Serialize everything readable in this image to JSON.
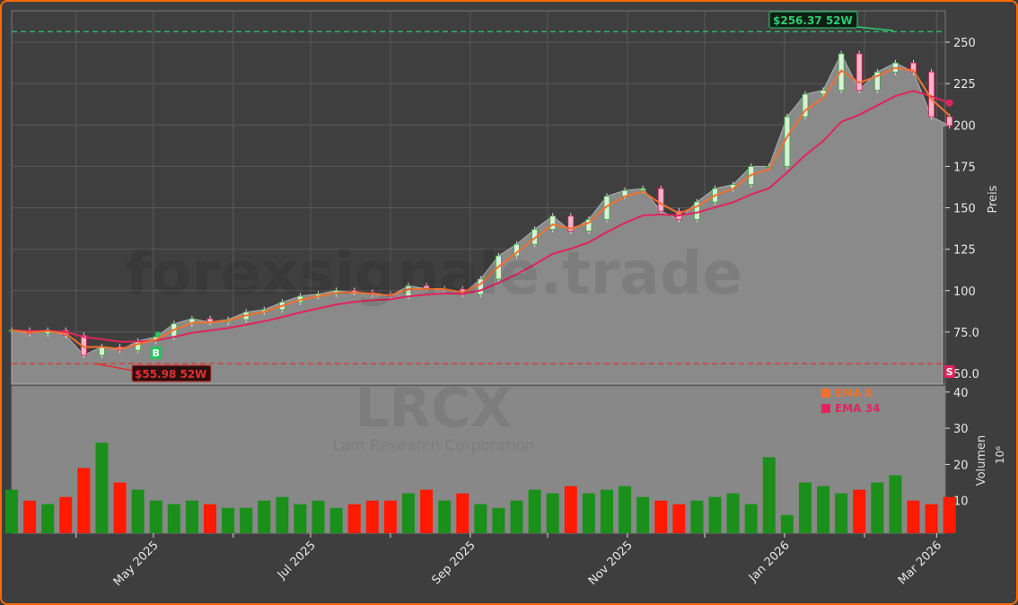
{
  "watermark": {
    "site": "forexsignale.trade",
    "ticker": "LRCX",
    "company": "Lam Research Corporation"
  },
  "colors": {
    "up": "#1a8f1a",
    "down": "#ff1a00",
    "ema_fast": "#f07030",
    "ema_slow": "#e0245e",
    "high_line": "#2ecc71",
    "low_line": "#e03030",
    "frame": "#ff6a00"
  },
  "chart_data": [
    {
      "type": "candlestick",
      "title": "",
      "ylabel": "Preis",
      "ylim": [
        45,
        268
      ],
      "yticks": [
        "50.0",
        "75.0",
        "100",
        "125",
        "150",
        "175",
        "200",
        "225",
        "250"
      ],
      "ytick_values": [
        50,
        75,
        100,
        125,
        150,
        175,
        200,
        225,
        250
      ],
      "grid": true,
      "dates": [
        "2025-03-07",
        "2025-03-14",
        "2025-03-21",
        "2025-03-28",
        "2025-04-04",
        "2025-04-11",
        "2025-04-18",
        "2025-04-25",
        "2025-05-02",
        "2025-05-09",
        "2025-05-16",
        "2025-05-23",
        "2025-05-30",
        "2025-06-06",
        "2025-06-13",
        "2025-06-20",
        "2025-06-27",
        "2025-07-04",
        "2025-07-11",
        "2025-07-18",
        "2025-07-25",
        "2025-08-01",
        "2025-08-08",
        "2025-08-15",
        "2025-08-22",
        "2025-08-29",
        "2025-09-05",
        "2025-09-12",
        "2025-09-19",
        "2025-09-26",
        "2025-10-03",
        "2025-10-10",
        "2025-10-17",
        "2025-10-24",
        "2025-10-31",
        "2025-11-07",
        "2025-11-14",
        "2025-11-21",
        "2025-11-28",
        "2025-12-05",
        "2025-12-12",
        "2025-12-19",
        "2025-12-26",
        "2026-01-02",
        "2026-01-09",
        "2026-01-16",
        "2026-01-23",
        "2026-01-30",
        "2026-02-06",
        "2026-02-13",
        "2026-02-20",
        "2026-02-27",
        "2026-03-06"
      ],
      "close": [
        76,
        74,
        76,
        73,
        61,
        66,
        64,
        69.5,
        72,
        80,
        83,
        81,
        82.5,
        87,
        88.5,
        93,
        96.6,
        98,
        100,
        99,
        97.7,
        96.6,
        103,
        101,
        101,
        97.7,
        107,
        121,
        128,
        137,
        145,
        136,
        143,
        157,
        160.5,
        161.6,
        148,
        143,
        153.5,
        161.6,
        164,
        175,
        175,
        205,
        218.6,
        221,
        243,
        221,
        232,
        237.5,
        232,
        205,
        199.6
      ],
      "legend": [
        {
          "name": "EMA 8",
          "period": 8
        },
        {
          "name": "EMA 34",
          "period": 34
        }
      ],
      "legend_position": "top-right",
      "annotations": {
        "high": {
          "value": 256.37,
          "label": "$256.37 52W"
        },
        "low": {
          "value": 55.98,
          "label": "$55.98 52W"
        },
        "buy_marker": {
          "label": "B",
          "date": "2025-05-02"
        },
        "sell_marker": {
          "label": "S",
          "date": "2026-03-06"
        }
      }
    },
    {
      "type": "bar",
      "ylabel": "Volumen",
      "yunit": "10⁶",
      "ylim": [
        1,
        41
      ],
      "yticks": [
        "10",
        "20",
        "30",
        "40"
      ],
      "ytick_values": [
        10,
        20,
        30,
        40
      ],
      "volume": [
        13,
        10,
        9,
        11,
        19,
        26,
        15,
        13,
        10,
        9,
        10,
        9,
        8,
        8,
        10,
        11,
        9,
        10,
        8,
        9,
        10,
        10,
        12,
        13,
        10,
        12,
        9,
        8,
        10,
        13,
        12,
        14,
        12,
        13,
        14,
        11,
        10,
        9,
        10,
        11,
        12,
        9,
        22,
        6,
        15,
        14,
        12,
        13,
        15,
        17,
        10,
        9,
        11
      ]
    }
  ],
  "xaxis": {
    "ticks": [
      {
        "label": "May 2025",
        "date": "2025-05-01"
      },
      {
        "label": "Jul 2025",
        "date": "2025-07-01"
      },
      {
        "label": "Sep 2025",
        "date": "2025-09-01"
      },
      {
        "label": "Nov 2025",
        "date": "2025-11-01"
      },
      {
        "label": "Jan 2026",
        "date": "2026-01-01"
      },
      {
        "label": "Mar 2026",
        "date": "2026-03-01"
      }
    ],
    "minor_ticks": [
      "2025-04-01",
      "2025-06-01",
      "2025-08-01",
      "2025-10-01",
      "2025-12-01",
      "2026-02-01"
    ]
  }
}
